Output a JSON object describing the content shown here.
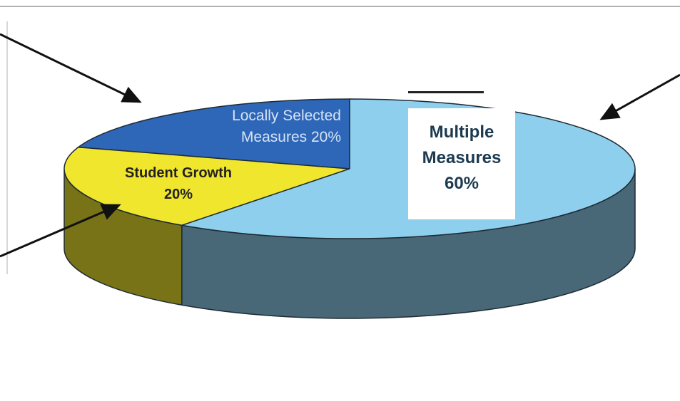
{
  "chart_data": {
    "type": "pie",
    "style": "3d",
    "slices": [
      {
        "label": "Locally Selected Measures 20%",
        "value": 20,
        "color": "#2e66b8"
      },
      {
        "label": "Student Growth 20%",
        "value": 20,
        "color": "#f0e62e"
      },
      {
        "label": "Multiple Measures 60%",
        "value": 60,
        "color": "#8fcfee"
      }
    ],
    "label_lines": {
      "locally_selected": [
        "Locally Selected",
        "Measures 20%"
      ],
      "student_growth": [
        "Student Growth",
        "20%"
      ],
      "multiple_measures": [
        "Multiple",
        "Measures",
        "60%"
      ]
    }
  }
}
